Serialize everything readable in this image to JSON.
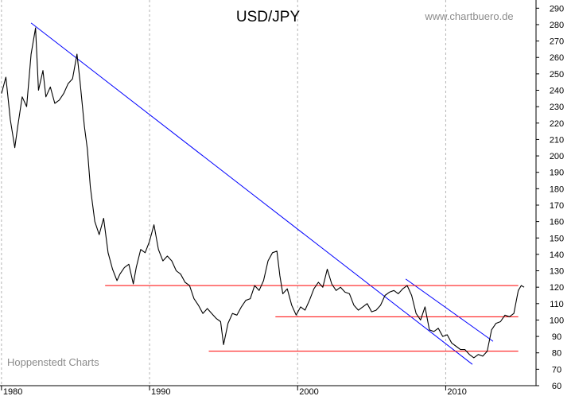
{
  "chart_data": {
    "type": "line",
    "title": "USD/JPY",
    "source_label": "www.chartbuero.de",
    "footer_label": "Hoppenstedt Charts",
    "xlim": [
      1979.9,
      2016.1
    ],
    "ylim": [
      60,
      295
    ],
    "x_ticks": [
      1980,
      1990,
      2000,
      2010
    ],
    "x_tick_labels": [
      "1980",
      "1990",
      "2000",
      "2010"
    ],
    "y_ticks": [
      60,
      70,
      80,
      90,
      100,
      110,
      120,
      130,
      140,
      150,
      160,
      170,
      180,
      190,
      200,
      210,
      220,
      230,
      240,
      250,
      260,
      270,
      280,
      290
    ],
    "y_tick_labels": [
      "60",
      "70",
      "80",
      "90",
      "100",
      "110",
      "120",
      "130",
      "140",
      "150",
      "160",
      "170",
      "180",
      "190",
      "200",
      "210",
      "220",
      "230",
      "240",
      "250",
      "260",
      "270",
      "280",
      "290"
    ],
    "grid": "dashed vertical at decades",
    "series": [
      {
        "color": "#000000",
        "x": [
          1980.0,
          1980.3,
          1980.6,
          1980.9,
          1981.1,
          1981.4,
          1981.7,
          1982.0,
          1982.3,
          1982.5,
          1982.8,
          1983.0,
          1983.3,
          1983.6,
          1983.9,
          1984.2,
          1984.5,
          1984.8,
          1985.1,
          1985.3,
          1985.6,
          1985.8,
          1986.0,
          1986.3,
          1986.6,
          1986.9,
          1987.2,
          1987.5,
          1987.8,
          1988.0,
          1988.3,
          1988.6,
          1988.9,
          1989.1,
          1989.4,
          1989.7,
          1990.0,
          1990.3,
          1990.6,
          1990.9,
          1991.2,
          1991.5,
          1991.8,
          1992.1,
          1992.4,
          1992.7,
          1993.0,
          1993.3,
          1993.6,
          1993.9,
          1994.2,
          1994.5,
          1994.8,
          1995.0,
          1995.3,
          1995.6,
          1995.9,
          1996.2,
          1996.5,
          1996.8,
          1997.1,
          1997.4,
          1997.7,
          1998.0,
          1998.3,
          1998.6,
          1998.8,
          1999.0,
          1999.3,
          1999.6,
          1999.9,
          2000.2,
          2000.5,
          2000.8,
          2001.1,
          2001.4,
          2001.7,
          2002.0,
          2002.3,
          2002.6,
          2002.9,
          2003.2,
          2003.5,
          2003.8,
          2004.1,
          2004.4,
          2004.7,
          2005.0,
          2005.3,
          2005.6,
          2005.9,
          2006.2,
          2006.5,
          2006.8,
          2007.1,
          2007.4,
          2007.7,
          2008.0,
          2008.3,
          2008.6,
          2008.9,
          2009.2,
          2009.5,
          2009.8,
          2010.1,
          2010.4,
          2010.7,
          2011.0,
          2011.3,
          2011.6,
          2011.9,
          2012.2,
          2012.5,
          2012.8,
          2013.1,
          2013.4,
          2013.7,
          2014.0,
          2014.3,
          2014.6,
          2014.9,
          2015.1,
          2015.3
        ],
        "values": [
          238,
          248,
          222,
          205,
          218,
          236,
          230,
          262,
          278,
          240,
          252,
          236,
          242,
          232,
          234,
          238,
          244,
          247,
          262,
          246,
          218,
          204,
          181,
          160,
          152,
          162,
          141,
          131,
          124,
          128,
          132,
          134,
          122,
          132,
          143,
          141,
          148,
          158,
          143,
          136,
          139,
          136,
          130,
          128,
          123,
          121,
          113,
          109,
          104,
          107,
          104,
          101,
          99,
          85,
          98,
          104,
          103,
          108,
          112,
          113,
          121,
          118,
          124,
          136,
          141,
          142,
          127,
          116,
          119,
          109,
          103,
          108,
          106,
          112,
          119,
          123,
          120,
          131,
          122,
          118,
          120,
          117,
          116,
          109,
          106,
          108,
          110,
          105,
          106,
          109,
          115,
          117,
          118,
          116,
          119,
          121,
          115,
          104,
          100,
          108,
          94,
          93,
          95,
          90,
          91,
          86,
          84,
          82,
          82,
          79,
          77,
          79,
          78,
          81,
          94,
          98,
          99,
          103,
          102,
          104,
          118,
          121,
          120
        ]
      }
    ],
    "lines": [
      {
        "color": "#0000ff",
        "x": [
          1982.0,
          2011.8
        ],
        "y": [
          281,
          73
        ]
      },
      {
        "color": "#0000ff",
        "x": [
          2007.3,
          2013.2
        ],
        "y": [
          125,
          87
        ]
      },
      {
        "color": "#ff0000",
        "x": [
          1987.0,
          2014.9
        ],
        "y": [
          121,
          121
        ]
      },
      {
        "color": "#ff0000",
        "x": [
          1998.5,
          2014.9
        ],
        "y": [
          102,
          102
        ]
      },
      {
        "color": "#ff0000",
        "x": [
          1994.0,
          2014.9
        ],
        "y": [
          81,
          81
        ]
      }
    ]
  }
}
